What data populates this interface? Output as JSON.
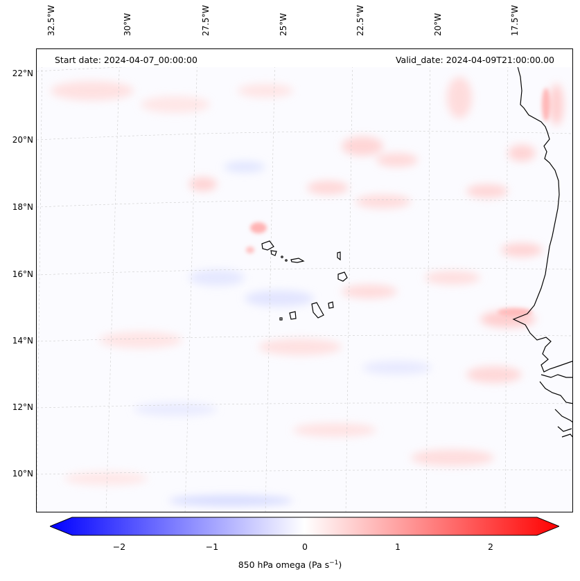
{
  "map": {
    "header": {
      "start_date": "Start date: 2024-04-07_00:00:00",
      "valid_date": "Valid_date: 2024-04-09T21:00:00.00"
    },
    "longitude_labels": [
      "32.5°W",
      "30°W",
      "27.5°W",
      "25°W",
      "22.5°W",
      "20°W",
      "17.5°W"
    ],
    "latitude_labels": [
      "22°N",
      "20°N",
      "18°N",
      "16°N",
      "14°N",
      "12°N",
      "10°N"
    ],
    "features": [
      "cape-verde-islands",
      "west-african-coastline"
    ]
  },
  "colorbar": {
    "label_prefix": "850 hPa omega (Pa s",
    "label_exponent": "−1",
    "label_suffix": ")",
    "ticks": [
      "−2",
      "−1",
      "0",
      "1",
      "2"
    ],
    "range": [
      -2.75,
      2.75
    ],
    "colors": {
      "negative": "#0000ff",
      "zero": "#ffffff",
      "positive": "#ff0000"
    },
    "extend": "both"
  }
}
